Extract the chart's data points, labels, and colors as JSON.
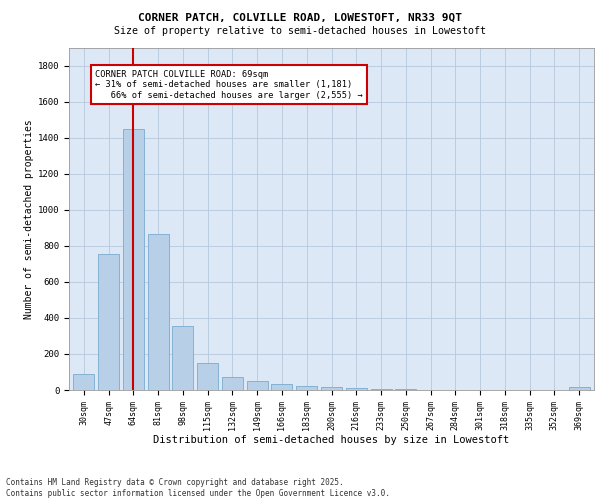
{
  "title1": "CORNER PATCH, COLVILLE ROAD, LOWESTOFT, NR33 9QT",
  "title2": "Size of property relative to semi-detached houses in Lowestoft",
  "xlabel": "Distribution of semi-detached houses by size in Lowestoft",
  "ylabel": "Number of semi-detached properties",
  "categories": [
    "30sqm",
    "47sqm",
    "64sqm",
    "81sqm",
    "98sqm",
    "115sqm",
    "132sqm",
    "149sqm",
    "166sqm",
    "183sqm",
    "200sqm",
    "216sqm",
    "233sqm",
    "250sqm",
    "267sqm",
    "284sqm",
    "301sqm",
    "318sqm",
    "335sqm",
    "352sqm",
    "369sqm"
  ],
  "values": [
    90,
    755,
    1450,
    865,
    355,
    150,
    70,
    52,
    35,
    22,
    15,
    10,
    5,
    3,
    2,
    2,
    1,
    1,
    1,
    1,
    18
  ],
  "bar_color": "#b8cfe8",
  "bar_edge_color": "#7aaad0",
  "vline_x": 2,
  "vline_color": "#cc0000",
  "annotation_text": "CORNER PATCH COLVILLE ROAD: 69sqm\n← 31% of semi-detached houses are smaller (1,181)\n   66% of semi-detached houses are larger (2,555) →",
  "annotation_box_color": "#ffffff",
  "annotation_box_edge": "#cc0000",
  "ylim": [
    0,
    1900
  ],
  "background_color": "#dce8f5",
  "footer": "Contains HM Land Registry data © Crown copyright and database right 2025.\nContains public sector information licensed under the Open Government Licence v3.0."
}
